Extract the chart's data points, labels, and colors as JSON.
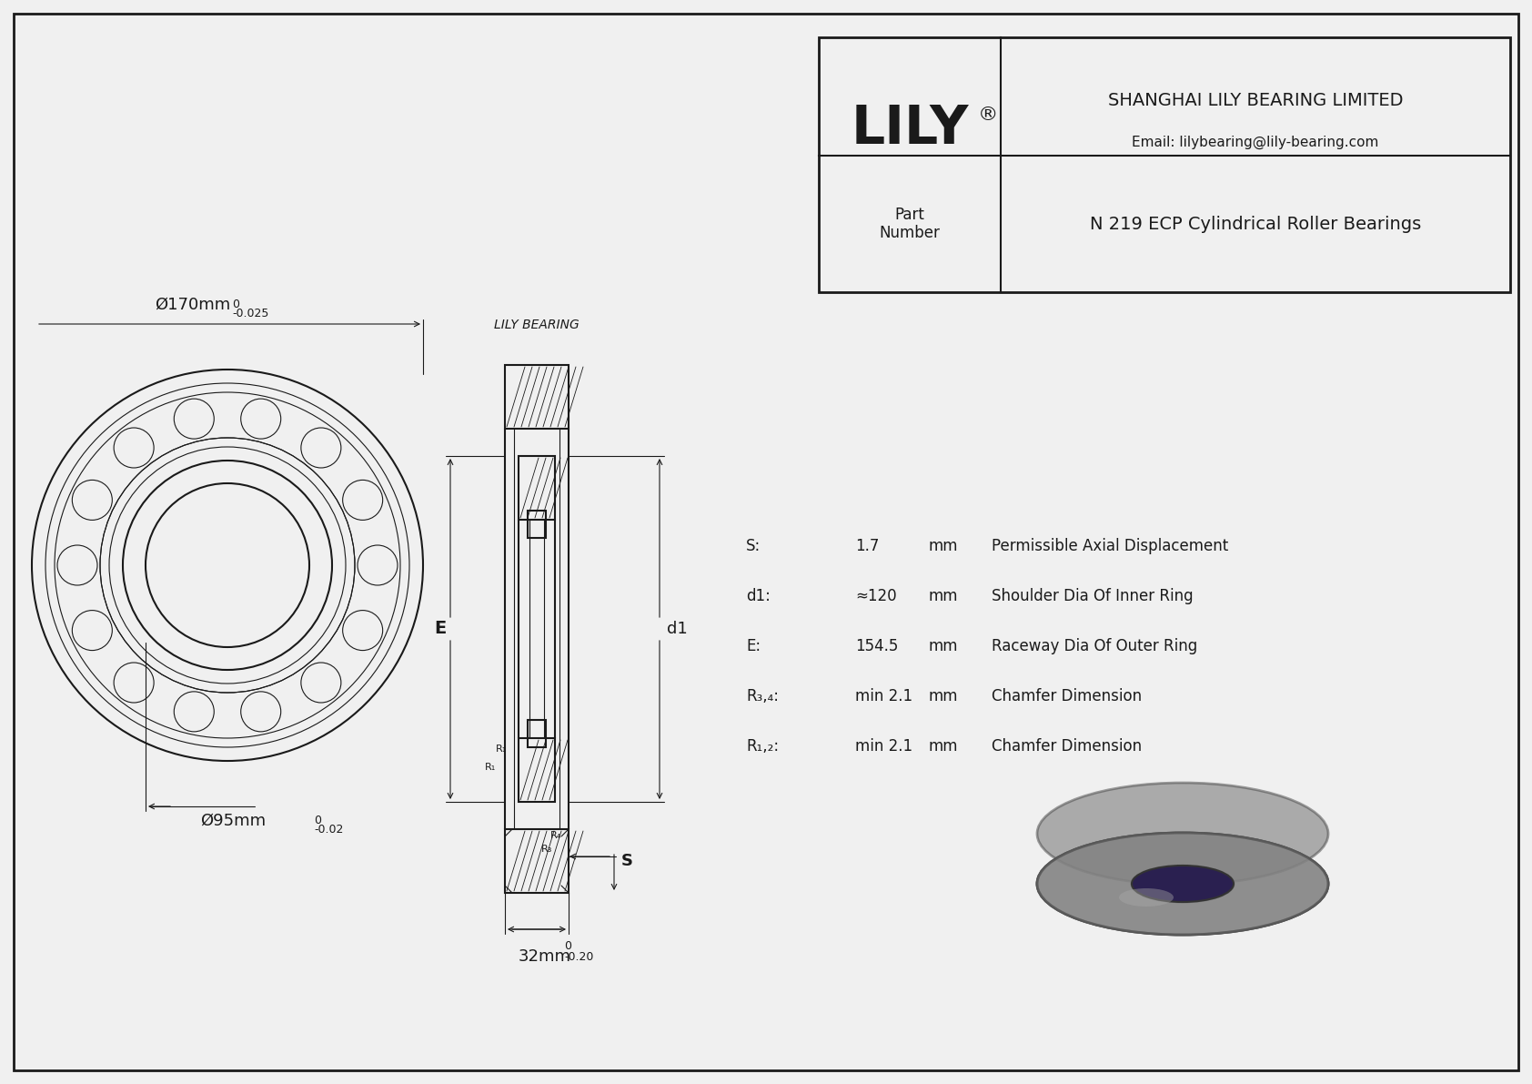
{
  "bg_color": "#f0f0f0",
  "line_color": "#1a1a1a",
  "title": "N 219 ECP Cylindrical Roller Bearings",
  "outer_dia_label": "Ø170mm",
  "outer_dia_tol": "-0.025",
  "inner_dia_label": "Ø95mm",
  "inner_dia_tol": "-0.02",
  "width_label": "32mm",
  "width_tol": "-0.20",
  "params": [
    {
      "symbol": "R₁,₂:",
      "value": "min 2.1",
      "unit": "mm",
      "desc": "Chamfer Dimension"
    },
    {
      "symbol": "R₃,₄:",
      "value": "min 2.1",
      "unit": "mm",
      "desc": "Chamfer Dimension"
    },
    {
      "symbol": "E:",
      "value": "154.5",
      "unit": "mm",
      "desc": "Raceway Dia Of Outer Ring"
    },
    {
      "symbol": "d1:",
      "value": "≈120",
      "unit": "mm",
      "desc": "Shoulder Dia Of Inner Ring"
    },
    {
      "symbol": "S:",
      "value": "1.7",
      "unit": "mm",
      "desc": "Permissible Axial Displacement"
    }
  ],
  "company": "SHANGHAI LILY BEARING LIMITED",
  "email": "Email: lilybearing@lily-bearing.com",
  "part_label": "Part\nNumber",
  "part_number": "N 219 ECP Cylindrical Roller Bearings",
  "lily_text": "LILY",
  "watermark": "LILY BEARING"
}
